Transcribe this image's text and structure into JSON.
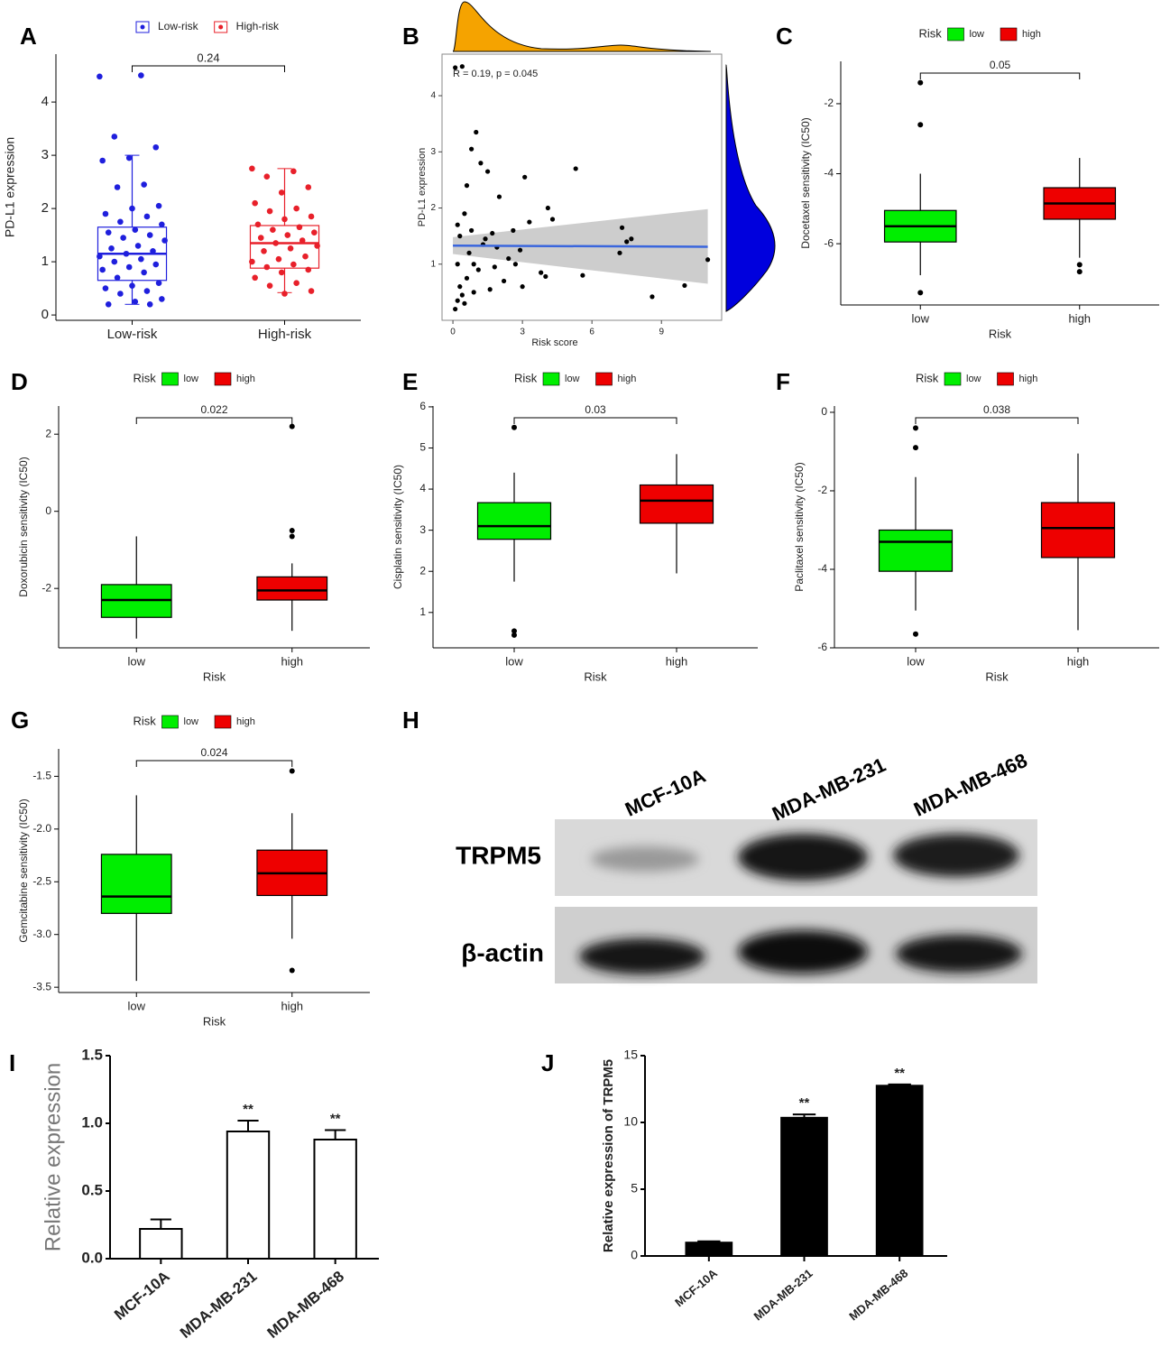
{
  "chart_data": [
    {
      "type": "boxplot",
      "label": "A",
      "ylabel": "PD-L1 expression",
      "pvalue": "0.24",
      "categories": [
        "Low-risk",
        "High-risk"
      ],
      "colors": [
        "#1f1fdd",
        "#e8202a"
      ],
      "ylim": [
        -0.1,
        4.9
      ],
      "yticks": [
        0,
        1,
        2,
        3,
        4
      ],
      "boxes": [
        {
          "min": 0.2,
          "q1": 0.65,
          "median": 1.15,
          "q3": 1.65,
          "max": 3.0,
          "outliers": []
        },
        {
          "min": 0.42,
          "q1": 0.88,
          "median": 1.35,
          "q3": 1.68,
          "max": 2.75,
          "outliers": []
        }
      ],
      "points": [
        [
          4.48,
          4.5,
          3.35,
          3.15,
          2.95,
          2.9,
          2.45,
          2.4,
          2.05,
          2.0,
          1.9,
          1.85,
          1.75,
          1.7,
          1.6,
          1.55,
          1.5,
          1.45,
          1.4,
          1.3,
          1.25,
          1.2,
          1.15,
          1.1,
          1.05,
          1.0,
          0.95,
          0.9,
          0.85,
          0.8,
          0.7,
          0.6,
          0.55,
          0.5,
          0.45,
          0.4,
          0.3,
          0.25,
          0.2,
          0.2
        ],
        [
          2.75,
          2.7,
          2.6,
          2.4,
          2.3,
          2.1,
          2.0,
          1.95,
          1.85,
          1.8,
          1.7,
          1.65,
          1.6,
          1.55,
          1.5,
          1.45,
          1.4,
          1.35,
          1.3,
          1.25,
          1.2,
          1.1,
          1.05,
          1.0,
          0.95,
          0.9,
          0.85,
          0.8,
          0.7,
          0.6,
          0.55,
          0.45,
          0.4
        ]
      ]
    },
    {
      "type": "scatter",
      "label": "B",
      "xlabel": "Risk score",
      "ylabel": "PD-L1 expression",
      "annotation": "R = 0.19, p = 0.045",
      "color": "#000000",
      "fit_color": "#3a66dd",
      "band_color": "#c4c4c4",
      "xlim": [
        -0.47,
        11.6
      ],
      "xticks": [
        0,
        3,
        6,
        9
      ],
      "ylim": [
        0,
        4.74
      ],
      "yticks": [
        1,
        2,
        3,
        4
      ],
      "x": [
        0.1,
        0.4,
        1.0,
        0.8,
        1.5,
        3.1,
        5.3,
        1.2,
        0.6,
        2.0,
        4.1,
        4.3,
        3.3,
        2.6,
        1.7,
        7.3,
        7.5,
        7.7,
        7.2,
        11.0,
        10.0,
        8.6,
        5.6,
        3.8,
        4.0,
        2.4,
        2.9,
        3.0,
        0.2,
        0.3,
        0.5,
        0.7,
        0.9,
        1.1,
        0.3,
        0.2,
        0.1,
        0.4,
        0.6,
        1.3,
        1.8,
        2.2,
        1.6,
        0.8,
        1.4,
        0.2,
        0.5,
        2.7,
        1.9,
        0.9
      ],
      "values": [
        4.5,
        4.52,
        3.35,
        3.05,
        2.65,
        2.55,
        2.7,
        2.8,
        2.4,
        2.2,
        2.0,
        1.8,
        1.75,
        1.6,
        1.55,
        1.65,
        1.4,
        1.45,
        1.2,
        1.08,
        0.62,
        0.42,
        0.8,
        0.85,
        0.78,
        1.1,
        1.25,
        0.6,
        1.7,
        1.5,
        1.9,
        1.2,
        1.0,
        0.9,
        0.6,
        0.35,
        0.2,
        0.45,
        0.75,
        1.35,
        0.95,
        0.7,
        0.55,
        1.6,
        1.45,
        1.0,
        0.3,
        1.0,
        1.3,
        0.5
      ],
      "fit": {
        "x": [
          0,
          11
        ],
        "y": [
          1.33,
          1.31
        ],
        "lower": [
          1.18,
          0.65
        ],
        "upper": [
          1.48,
          1.98
        ]
      }
    },
    {
      "type": "boxplot",
      "label": "C",
      "ylabel": "Docetaxel sensitivity (IC50)",
      "xlabel": "Risk",
      "legend_title": "Risk",
      "pvalue": "0.05",
      "categories": [
        "low",
        "high"
      ],
      "colors": [
        "#00ee00",
        "#ee0000"
      ],
      "ylim": [
        -7.75,
        -0.79
      ],
      "yticks": [
        -6,
        -4,
        -2
      ],
      "boxes": [
        {
          "min": -6.9,
          "q1": -5.95,
          "median": -5.5,
          "q3": -5.05,
          "max": -4.0,
          "outliers": [
            -1.4,
            -2.6,
            -7.4
          ]
        },
        {
          "min": -6.4,
          "q1": -5.3,
          "median": -4.85,
          "q3": -4.4,
          "max": -3.55,
          "outliers": [
            -6.6,
            -6.8
          ]
        }
      ]
    },
    {
      "type": "boxplot",
      "label": "D",
      "ylabel": "Doxorubicin sensitivity (IC50)",
      "xlabel": "Risk",
      "legend_title": "Risk",
      "pvalue": "0.022",
      "categories": [
        "low",
        "high"
      ],
      "colors": [
        "#00ee00",
        "#ee0000"
      ],
      "ylim": [
        -3.54,
        2.73
      ],
      "yticks": [
        -2,
        0,
        2
      ],
      "boxes": [
        {
          "min": -3.3,
          "q1": -2.75,
          "median": -2.3,
          "q3": -1.9,
          "max": -0.65,
          "outliers": []
        },
        {
          "min": -3.1,
          "q1": -2.3,
          "median": -2.05,
          "q3": -1.7,
          "max": -1.35,
          "outliers": [
            2.2,
            -0.5,
            -0.65
          ]
        }
      ]
    },
    {
      "type": "boxplot",
      "label": "E",
      "ylabel": "Cisplatin sensitivity (IC50)",
      "xlabel": "Risk",
      "legend_title": "Risk",
      "pvalue": "0.03",
      "categories": [
        "low",
        "high"
      ],
      "colors": [
        "#00ee00",
        "#ee0000"
      ],
      "ylim": [
        0.14,
        6.02
      ],
      "yticks": [
        1,
        2,
        3,
        4,
        5,
        6
      ],
      "boxes": [
        {
          "min": 1.75,
          "q1": 2.78,
          "median": 3.1,
          "q3": 3.67,
          "max": 4.4,
          "outliers": [
            5.5,
            0.55,
            0.45
          ]
        },
        {
          "min": 1.95,
          "q1": 3.17,
          "median": 3.72,
          "q3": 4.1,
          "max": 4.85,
          "outliers": []
        }
      ]
    },
    {
      "type": "boxplot",
      "label": "F",
      "ylabel": "Paclitaxel sensitivity (IC50)",
      "xlabel": "Risk",
      "legend_title": "Risk",
      "pvalue": "0.038",
      "categories": [
        "low",
        "high"
      ],
      "colors": [
        "#00ee00",
        "#ee0000"
      ],
      "ylim": [
        -6.0,
        0.16
      ],
      "yticks": [
        0,
        -2,
        -4,
        -6
      ],
      "boxes": [
        {
          "min": -5.05,
          "q1": -4.05,
          "median": -3.3,
          "q3": -3.0,
          "max": -1.65,
          "outliers": [
            -0.4,
            -0.9,
            -5.65
          ]
        },
        {
          "min": -5.55,
          "q1": -3.7,
          "median": -2.95,
          "q3": -2.3,
          "max": -1.05,
          "outliers": []
        }
      ]
    },
    {
      "type": "boxplot",
      "label": "G",
      "ylabel": "Gemcitabine sensitivity (IC50)",
      "xlabel": "Risk",
      "legend_title": "Risk",
      "pvalue": "0.024",
      "categories": [
        "low",
        "high"
      ],
      "colors": [
        "#00ee00",
        "#ee0000"
      ],
      "ylim": [
        -3.55,
        -1.24
      ],
      "yticks": [
        -1.5,
        {
          "value": -2,
          "label": "-2.0"
        },
        -2.5,
        {
          "value": -3,
          "label": "-3.0"
        },
        -3.5
      ],
      "boxes": [
        {
          "min": -3.44,
          "q1": -2.8,
          "median": -2.64,
          "q3": -2.24,
          "max": -1.68,
          "outliers": []
        },
        {
          "min": -3.04,
          "q1": -2.63,
          "median": -2.42,
          "q3": -2.2,
          "max": -1.85,
          "outliers": [
            -1.45,
            -3.34
          ]
        }
      ]
    },
    {
      "type": "bar",
      "label": "I",
      "ylabel": "Relative expression",
      "color": "#ffffff",
      "categories": [
        "MCF-10A",
        "MDA-MB-231",
        "MDA-MB-468"
      ],
      "values": [
        0.22,
        0.94,
        0.88
      ],
      "errors": [
        0.07,
        0.08,
        0.07
      ],
      "annotations": [
        null,
        "**",
        "**"
      ],
      "ylim": [
        0,
        1.5
      ],
      "yticks": [
        {
          "value": 0,
          "label": "0.0"
        },
        0.5,
        {
          "value": 1,
          "label": "1.0"
        },
        1.5
      ]
    },
    {
      "type": "bar",
      "label": "J",
      "ylabel": "Relative expression of TRPM5",
      "color": "#000000",
      "categories": [
        "MCF-10A",
        "MDA-MB-231",
        "MDA-MB-468"
      ],
      "values": [
        1.0,
        10.35,
        12.75
      ],
      "errors": [
        0.1,
        0.25,
        0.1
      ],
      "annotations": [
        null,
        "**",
        "**"
      ],
      "ylim": [
        0,
        15
      ],
      "yticks": [
        0,
        5,
        10,
        15
      ]
    }
  ],
  "blot": {
    "label": "H",
    "lanes": [
      "MCF-10A",
      "MDA-MB-231",
      "MDA-MB-468"
    ],
    "rows": [
      "TRPM5",
      "β-actin"
    ]
  }
}
